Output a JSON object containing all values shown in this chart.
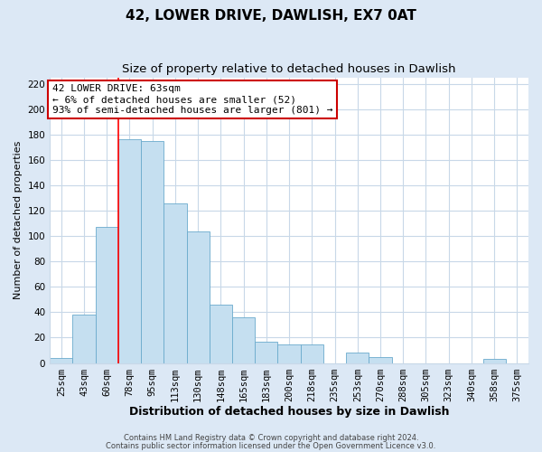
{
  "title": "42, LOWER DRIVE, DAWLISH, EX7 0AT",
  "subtitle": "Size of property relative to detached houses in Dawlish",
  "xlabel": "Distribution of detached houses by size in Dawlish",
  "ylabel": "Number of detached properties",
  "bar_labels": [
    "25sqm",
    "43sqm",
    "60sqm",
    "78sqm",
    "95sqm",
    "113sqm",
    "130sqm",
    "148sqm",
    "165sqm",
    "183sqm",
    "200sqm",
    "218sqm",
    "235sqm",
    "253sqm",
    "270sqm",
    "288sqm",
    "305sqm",
    "323sqm",
    "340sqm",
    "358sqm",
    "375sqm"
  ],
  "bar_values": [
    4,
    38,
    107,
    176,
    175,
    126,
    104,
    46,
    36,
    17,
    15,
    15,
    0,
    8,
    5,
    0,
    0,
    0,
    0,
    3,
    0
  ],
  "bar_color": "#c5dff0",
  "bar_edge_color": "#6aaacc",
  "ylim": [
    0,
    225
  ],
  "yticks": [
    0,
    20,
    40,
    60,
    80,
    100,
    120,
    140,
    160,
    180,
    200,
    220
  ],
  "red_line_index": 2,
  "annotation_title": "42 LOWER DRIVE: 63sqm",
  "annotation_line1": "← 6% of detached houses are smaller (52)",
  "annotation_line2": "93% of semi-detached houses are larger (801) →",
  "footer1": "Contains HM Land Registry data © Crown copyright and database right 2024.",
  "footer2": "Contains public sector information licensed under the Open Government Licence v3.0.",
  "fig_background_color": "#dce8f5",
  "plot_background": "#ffffff",
  "grid_color": "#c8d8e8",
  "title_fontsize": 11,
  "subtitle_fontsize": 9.5,
  "xlabel_fontsize": 9,
  "ylabel_fontsize": 8,
  "tick_fontsize": 7.5,
  "annotation_box_color": "#ffffff",
  "annotation_box_edge": "#cc0000",
  "footer_fontsize": 6
}
